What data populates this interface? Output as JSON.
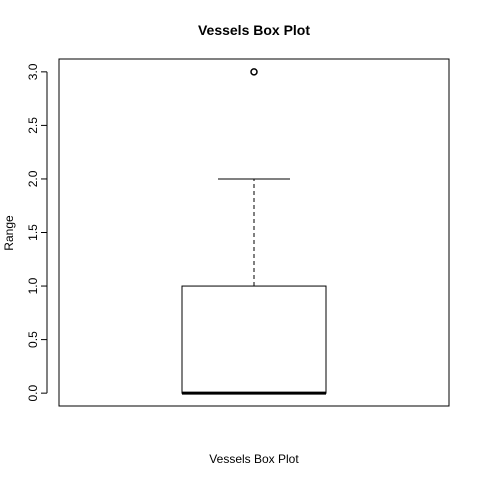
{
  "chart_data": {
    "type": "box",
    "title": "Vessels Box Plot",
    "xlabel": "Vessels Box Plot",
    "ylabel": "Range",
    "ylim": [
      -0.12,
      3.12
    ],
    "y_ticks": [
      0.0,
      0.5,
      1.0,
      1.5,
      2.0,
      2.5,
      3.0
    ],
    "y_tick_labels": [
      "0.0",
      "0.5",
      "1.0",
      "1.5",
      "2.0",
      "2.5",
      "3.0"
    ],
    "box": {
      "min": 0,
      "q1": 0,
      "median": 0,
      "q3": 1,
      "max": 2,
      "outliers": [
        3
      ]
    },
    "grid": false,
    "legend": "none",
    "colors": {
      "stroke": "#000000",
      "background": "#ffffff"
    }
  }
}
